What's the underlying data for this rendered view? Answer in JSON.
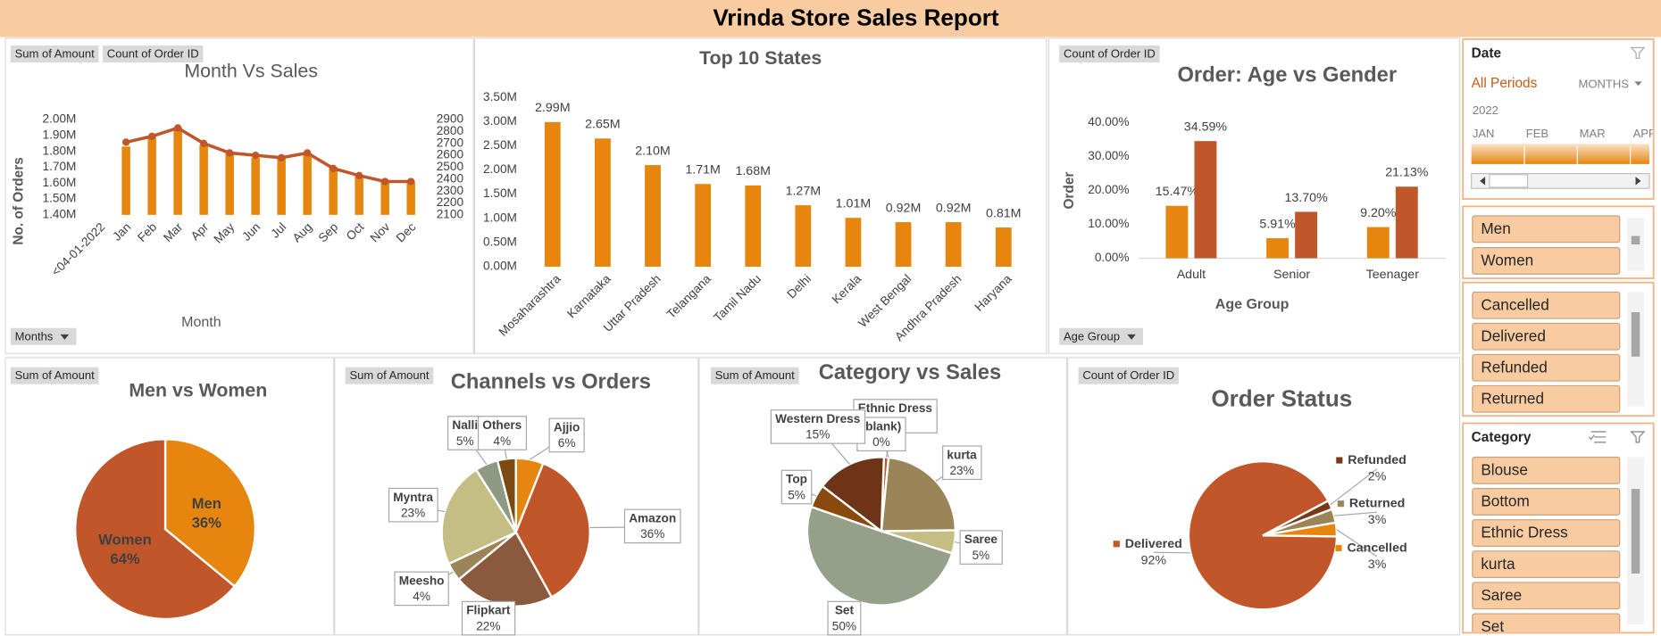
{
  "header": {
    "title": "Vrinda Store Sales Report"
  },
  "chart_data": [
    {
      "type": "combo",
      "title": "Month Vs Sales",
      "y_label": "No. of Orders",
      "x_label": "Month",
      "field_buttons": [
        "Sum of Amount",
        "Count of Order ID",
        "Months"
      ],
      "categories": [
        "<04-01-2022",
        "Jan",
        "Feb",
        "Mar",
        "Apr",
        "May",
        "Jun",
        "Jul",
        "Aug",
        "Sep",
        "Oct",
        "Nov",
        "Dec"
      ],
      "series": [
        {
          "color": "#e6860f",
          "values": [
            null,
            1830000,
            1890000,
            1950000,
            1840000,
            1790000,
            1760000,
            1760000,
            1780000,
            1700000,
            1650000,
            1610000,
            1610000
          ]
        },
        {
          "color": "#c0562a",
          "axis": "y2",
          "values": [
            null,
            2710,
            2760,
            2830,
            2700,
            2620,
            2600,
            2580,
            2620,
            2490,
            2430,
            2380,
            2380
          ]
        }
      ],
      "ylim": [
        1400000,
        2000000
      ],
      "yticks": [
        {
          "value": 1400000,
          "label": "1.40M"
        },
        {
          "value": 1500000,
          "label": "1.50M"
        },
        {
          "value": 1600000,
          "label": "1.60M"
        },
        {
          "value": 1700000,
          "label": "1.70M"
        },
        {
          "value": 1800000,
          "label": "1.80M"
        },
        {
          "value": 1900000,
          "label": "1.90M"
        },
        {
          "value": 2000000,
          "label": "2.00M"
        }
      ],
      "y2lim": [
        2100,
        2900
      ],
      "y2ticks": [
        2100,
        2200,
        2300,
        2400,
        2500,
        2600,
        2700,
        2800,
        2900
      ]
    },
    {
      "type": "bar",
      "title": "Top 10 States",
      "categories": [
        "Mosaharashtra",
        "Karnataka",
        "Uttar Pradesh",
        "Telangana",
        "Tamil Nadu",
        "Delhi",
        "Kerala",
        "West Bengal",
        "Andhra Pradesh",
        "Haryana"
      ],
      "values": [
        2990000,
        2650000,
        2100000,
        1710000,
        1680000,
        1270000,
        1010000,
        920000,
        920000,
        810000
      ],
      "value_labels": [
        "2.99M",
        "2.65M",
        "2.10M",
        "1.71M",
        "1.68M",
        "1.27M",
        "1.01M",
        "0.92M",
        "0.92M",
        "0.81M"
      ],
      "color": "#e6860f",
      "ylim": [
        0,
        3500000
      ],
      "yticks": [
        {
          "value": 0,
          "label": "0.00M"
        },
        {
          "value": 500000,
          "label": "0.50M"
        },
        {
          "value": 1000000,
          "label": "1.00M"
        },
        {
          "value": 1500000,
          "label": "1.50M"
        },
        {
          "value": 2000000,
          "label": "2.00M"
        },
        {
          "value": 2500000,
          "label": "2.50M"
        },
        {
          "value": 3000000,
          "label": "3.00M"
        },
        {
          "value": 3500000,
          "label": "3.50M"
        }
      ]
    },
    {
      "type": "bar",
      "title": "Order: Age vs Gender",
      "y_label": "Order",
      "x_label": "Age Group",
      "field_buttons": [
        "Count of Order ID",
        "Age Group"
      ],
      "categories": [
        "Adult",
        "Senior",
        "Teenager"
      ],
      "series": [
        {
          "color": "#e6860f",
          "values": [
            15.47,
            5.91,
            9.2
          ],
          "value_labels": [
            "15.47%",
            "5.91%",
            "9.20%"
          ]
        },
        {
          "color": "#c0562a",
          "values": [
            34.59,
            13.7,
            21.13
          ],
          "value_labels": [
            "34.59%",
            "13.70%",
            "21.13%"
          ]
        }
      ],
      "ylim": [
        0,
        40
      ],
      "yticks": [
        {
          "value": 0,
          "label": "0.00%"
        },
        {
          "value": 10,
          "label": "10.00%"
        },
        {
          "value": 20,
          "label": "20.00%"
        },
        {
          "value": 30,
          "label": "30.00%"
        },
        {
          "value": 40,
          "label": "40.00%"
        }
      ]
    },
    {
      "type": "pie",
      "title": "Men vs Women",
      "field_buttons": [
        "Sum of Amount"
      ],
      "categories": [
        "Men",
        "Women"
      ],
      "values": [
        36,
        64
      ],
      "value_labels": [
        "36%",
        "64%"
      ],
      "colors": [
        "#e6860f",
        "#c0562a"
      ]
    },
    {
      "type": "pie",
      "title": "Channels vs Orders",
      "field_buttons": [
        "Sum of Amount"
      ],
      "categories": [
        "Ajjio",
        "Amazon",
        "Flipkart",
        "Meesho",
        "Myntra",
        "Nalli",
        "Others"
      ],
      "values": [
        6,
        36,
        22,
        4,
        23,
        5,
        4
      ],
      "value_labels": [
        "6%",
        "36%",
        "22%",
        "4%",
        "23%",
        "5%",
        "4%"
      ],
      "colors": [
        "#e6860f",
        "#c0562a",
        "#8b5a3c",
        "#9b8457",
        "#c4bd84",
        "#8f9a84",
        "#7a4a12"
      ]
    },
    {
      "type": "pie",
      "title": "Category vs Sales",
      "field_buttons": [
        "Sum of Amount"
      ],
      "categories": [
        "Ethnic Dress",
        "(blank)",
        "kurta",
        "Saree",
        "Set",
        "Top",
        "Western Dress"
      ],
      "values": [
        1,
        0,
        23,
        5,
        50,
        5,
        15
      ],
      "value_labels": [
        "1%",
        "0%",
        "23%",
        "5%",
        "50%",
        "5%",
        "15%"
      ],
      "colors": [
        "#c0562a",
        "#e6860f",
        "#9b8457",
        "#c4bd84",
        "#94a08a",
        "#8b4a0d",
        "#6e3418"
      ]
    },
    {
      "type": "pie",
      "title": "Order Status",
      "field_buttons": [
        "Count of Order ID"
      ],
      "categories": [
        "Refunded",
        "Returned",
        "Cancelled",
        "Delivered"
      ],
      "values": [
        2,
        3,
        3,
        92
      ],
      "value_labels": [
        "2%",
        "3%",
        "3%",
        "92%"
      ],
      "colors": [
        "#7a3a1a",
        "#9b8457",
        "#e6860f",
        "#c0562a"
      ]
    }
  ],
  "slicers": {
    "date": {
      "title": "Date",
      "period": "All Periods",
      "level": "MONTHS",
      "year": "2022",
      "months": [
        "JAN",
        "FEB",
        "MAR",
        "APR"
      ]
    },
    "gender": {
      "items": [
        "Men",
        "Women"
      ]
    },
    "status": {
      "items": [
        "Cancelled",
        "Delivered",
        "Refunded",
        "Returned"
      ]
    },
    "category": {
      "title": "Category",
      "items": [
        "Blouse",
        "Bottom",
        "Ethnic Dress",
        "kurta",
        "Saree",
        "Set"
      ]
    }
  }
}
